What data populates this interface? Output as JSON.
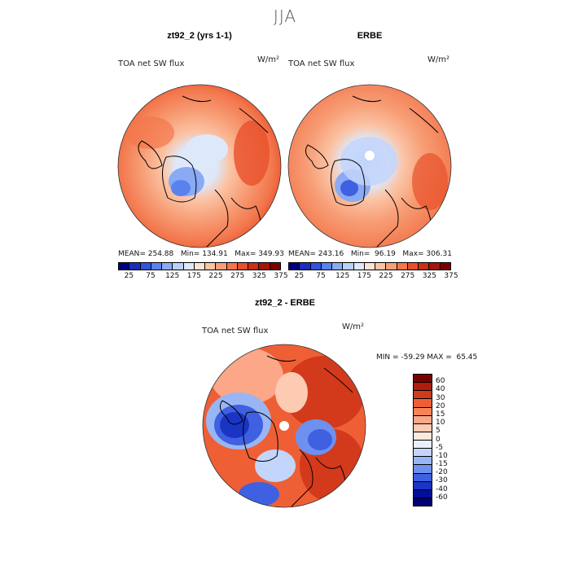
{
  "title": "JJA",
  "panels": [
    {
      "title": "zt92_2 (yrs 1-1)",
      "variable": "TOA net SW flux",
      "units": "W/m²",
      "mean_label": "MEAN= 254.88",
      "min_label": "Min= 134.91",
      "max_label": "Max= 349.93"
    },
    {
      "title": "ERBE",
      "variable": "TOA net SW flux",
      "units": "W/m²",
      "mean_label": "MEAN= 243.16",
      "min_label": "Min=  96.19",
      "max_label": "Max= 306.31"
    }
  ],
  "colorbar_top": {
    "colors": [
      "#00007f",
      "#1a2dbf",
      "#2f55e0",
      "#5a82ee",
      "#8aaaf4",
      "#b9d0fa",
      "#dde9fb",
      "#fbe3d4",
      "#fbc3a4",
      "#f79e76",
      "#f3764c",
      "#e8502a",
      "#cc2f14",
      "#a61509",
      "#7a0000"
    ],
    "labels": [
      "25",
      "75",
      "125",
      "175",
      "225",
      "275",
      "325",
      "375"
    ]
  },
  "diff_panel": {
    "title": "zt92_2 - ERBE",
    "variable": "TOA net SW flux",
    "units": "W/m²",
    "min_max_label": "MIN = -59.29 MAX =  65.45"
  },
  "colorbar_diff": {
    "colors": [
      "#7a0000",
      "#b01d0c",
      "#d33a1b",
      "#ef5f35",
      "#f78459",
      "#fba788",
      "#fdcab2",
      "#fde9dc",
      "#e9effb",
      "#c3d5fa",
      "#99b6f4",
      "#6e90ee",
      "#3f60e0",
      "#1a34c4",
      "#000f9c",
      "#000072"
    ],
    "labels": [
      "60",
      "40",
      "30",
      "20",
      "15",
      "10",
      "5",
      "0",
      "-5",
      "-10",
      "-15",
      "-20",
      "-30",
      "-40",
      "-60"
    ]
  }
}
